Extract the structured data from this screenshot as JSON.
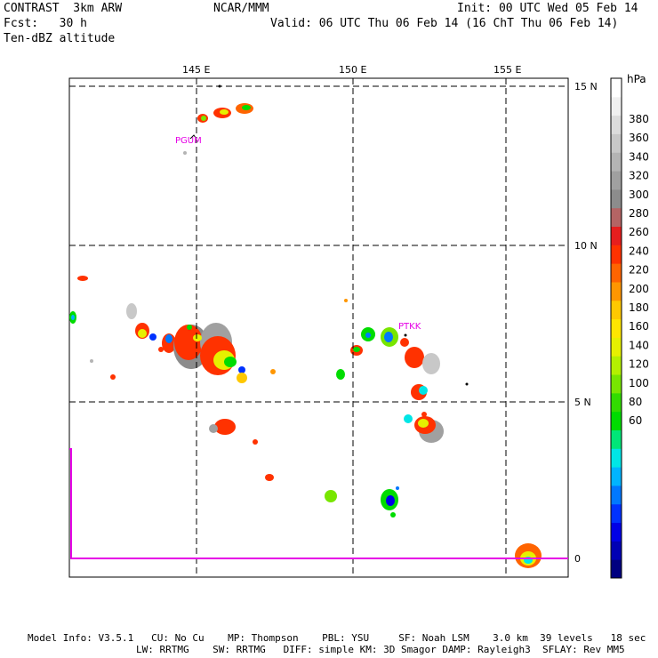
{
  "header": {
    "model": "CONTRAST  3km ARW",
    "center": "NCAR/MMM",
    "init": "Init: 00 UTC Wed 05 Feb 14",
    "fcst_label": "Fcst:   30 h",
    "valid": "Valid: 06 UTC Thu 06 Feb 14 (16 ChT Thu 06 Feb 14)",
    "field": "Ten-dBZ altitude"
  },
  "map": {
    "lon_labels": [
      "145 E",
      "150 E",
      "155 E"
    ],
    "lat_labels": [
      "15 N",
      "10 N",
      "5 N",
      "0"
    ],
    "stations": [
      "PGUM",
      "PTKK"
    ],
    "boundary_color": "#e600e6"
  },
  "colorbar": {
    "unit": "hPa",
    "labels": [
      "380",
      "360",
      "340",
      "320",
      "300",
      "280",
      "260",
      "240",
      "220",
      "200",
      "180",
      "160",
      "140",
      "120",
      "100",
      "80",
      "60"
    ],
    "colors": [
      "#000080",
      "#0000b4",
      "#0000e6",
      "#0032ff",
      "#0078ff",
      "#00b4ff",
      "#00e6e6",
      "#00e678",
      "#00dc00",
      "#32dc00",
      "#78e600",
      "#b4f000",
      "#e6f000",
      "#ffe600",
      "#ffc800",
      "#ff9600",
      "#ff6400",
      "#ff3200",
      "#e61e1e",
      "#b46464",
      "#8c8c8c",
      "#a0a0a0",
      "#b4b4b4",
      "#c8c8c8",
      "#dcdcdc",
      "#f0f0f0",
      "#ffffff"
    ]
  },
  "footer": {
    "line1": "Model Info: V3.5.1   CU: No Cu    MP: Thompson    PBL: YSU     SF: Noah LSM    3.0 km  39 levels   18 sec",
    "line2": "LW: RRTMG    SW: RRTMG   DIFF: simple KM: 3D Smagor DAMP: Rayleigh3  SFLAY: Rev MM5"
  }
}
